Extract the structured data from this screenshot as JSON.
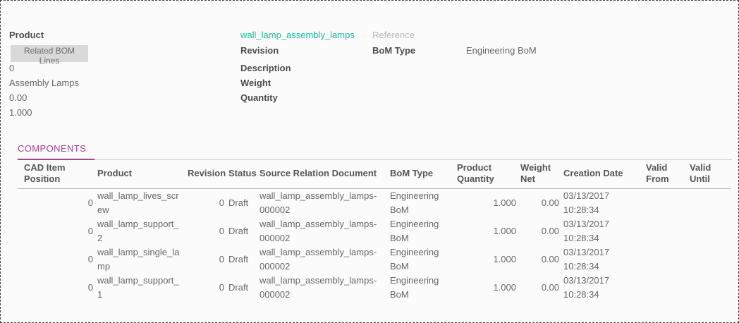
{
  "colors": {
    "link_teal": "#1abc9c",
    "components_accent": "#a24689",
    "button_bg": "#d9d9d9"
  },
  "header": {
    "left": {
      "product_label": "Product",
      "related_button_label": "Related BOM Lines",
      "values": [
        "0",
        "Assembly Lamps",
        "0.00",
        "1.000"
      ]
    },
    "middle": {
      "product_link": "wall_lamp_assembly_lamps",
      "labels": [
        "Revision",
        "Description",
        "Weight",
        "Quantity"
      ]
    },
    "right": {
      "reference_label": "Reference",
      "bom_type_label": "BoM Type",
      "bom_type_value": "Engineering BoM"
    }
  },
  "components": {
    "tab_label": "COMPONENTS",
    "columns": [
      "CAD Item Position",
      "Product",
      "Revision",
      "Status",
      "Source Relation Document",
      "BoM Type",
      "Product Quantity",
      "Weight Net",
      "Creation Date",
      "Valid From",
      "Valid Until"
    ],
    "rows": [
      {
        "cad_item_position": "0",
        "product": "wall_lamp_lives_screw",
        "revision": "0",
        "status": "Draft",
        "source_relation_document": "wall_lamp_assembly_lamps-000002",
        "bom_type": "Engineering BoM",
        "product_quantity": "1.000",
        "weight_net": "0.00",
        "creation_date": "03/13/2017 10:28:34",
        "valid_from": "",
        "valid_until": ""
      },
      {
        "cad_item_position": "0",
        "product": "wall_lamp_support_2",
        "revision": "0",
        "status": "Draft",
        "source_relation_document": "wall_lamp_assembly_lamps-000002",
        "bom_type": "Engineering BoM",
        "product_quantity": "1.000",
        "weight_net": "0.00",
        "creation_date": "03/13/2017 10:28:34",
        "valid_from": "",
        "valid_until": ""
      },
      {
        "cad_item_position": "0",
        "product": "wall_lamp_single_lamp",
        "revision": "0",
        "status": "Draft",
        "source_relation_document": "wall_lamp_assembly_lamps-000002",
        "bom_type": "Engineering BoM",
        "product_quantity": "1.000",
        "weight_net": "0.00",
        "creation_date": "03/13/2017 10:28:34",
        "valid_from": "",
        "valid_until": ""
      },
      {
        "cad_item_position": "0",
        "product": "wall_lamp_support_1",
        "revision": "0",
        "status": "Draft",
        "source_relation_document": "wall_lamp_assembly_lamps-000002",
        "bom_type": "Engineering BoM",
        "product_quantity": "1.000",
        "weight_net": "0.00",
        "creation_date": "03/13/2017 10:28:34",
        "valid_from": "",
        "valid_until": ""
      }
    ]
  }
}
